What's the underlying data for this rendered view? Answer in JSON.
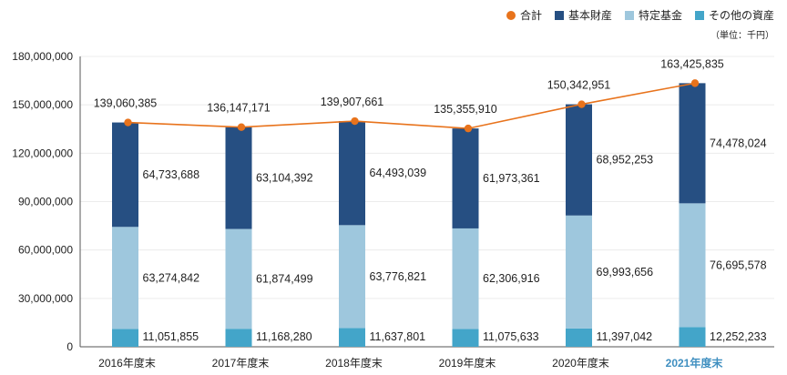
{
  "legend": {
    "total": "合計",
    "basic": "基本財産",
    "specified": "特定基金",
    "other": "その他の資産"
  },
  "unit_label": "（単位：千円）",
  "colors": {
    "basic": "#264f82",
    "specified": "#9ec7dd",
    "other": "#43a5c9",
    "total": "#e8731c",
    "highlight": "#3f8fc0"
  },
  "chart_data": {
    "type": "bar",
    "stacked": true,
    "categories": [
      "2016年度末",
      "2017年度末",
      "2018年度末",
      "2019年度末",
      "2020年度末",
      "2021年度末"
    ],
    "highlight_category": "2021年度末",
    "series": [
      {
        "key": "other",
        "name": "その他の資産",
        "values": [
          11051855,
          11168280,
          11637801,
          11075633,
          11397042,
          12252233
        ],
        "labels": [
          "11,051,855",
          "11,168,280",
          "11,637,801",
          "11,075,633",
          "11,397,042",
          "12,252,233"
        ]
      },
      {
        "key": "specified",
        "name": "特定基金",
        "values": [
          63274842,
          61874499,
          63776821,
          62306916,
          69993656,
          76695578
        ],
        "labels": [
          "63,274,842",
          "61,874,499",
          "63,776,821",
          "62,306,916",
          "69,993,656",
          "76,695,578"
        ]
      },
      {
        "key": "basic",
        "name": "基本財産",
        "values": [
          64733688,
          63104392,
          64493039,
          61973361,
          68952253,
          74478024
        ],
        "labels": [
          "64,733,688",
          "63,104,392",
          "64,493,039",
          "61,973,361",
          "68,952,253",
          "74,478,024"
        ]
      }
    ],
    "total": {
      "name": "合計",
      "type": "line",
      "values": [
        139060385,
        136147171,
        139907661,
        135355910,
        150342951,
        163425835
      ],
      "labels": [
        "139,060,385",
        "136,147,171",
        "139,907,661",
        "135,355,910",
        "150,342,951",
        "163,425,835"
      ]
    },
    "ylim": [
      0,
      180000000
    ],
    "yticks": [
      0,
      30000000,
      60000000,
      90000000,
      120000000,
      150000000,
      180000000
    ],
    "ytick_labels": [
      "0",
      "30,000,000",
      "60,000,000",
      "90,000,000",
      "120,000,000",
      "150,000,000",
      "180,000,000"
    ],
    "xlabel": "",
    "ylabel": ""
  }
}
